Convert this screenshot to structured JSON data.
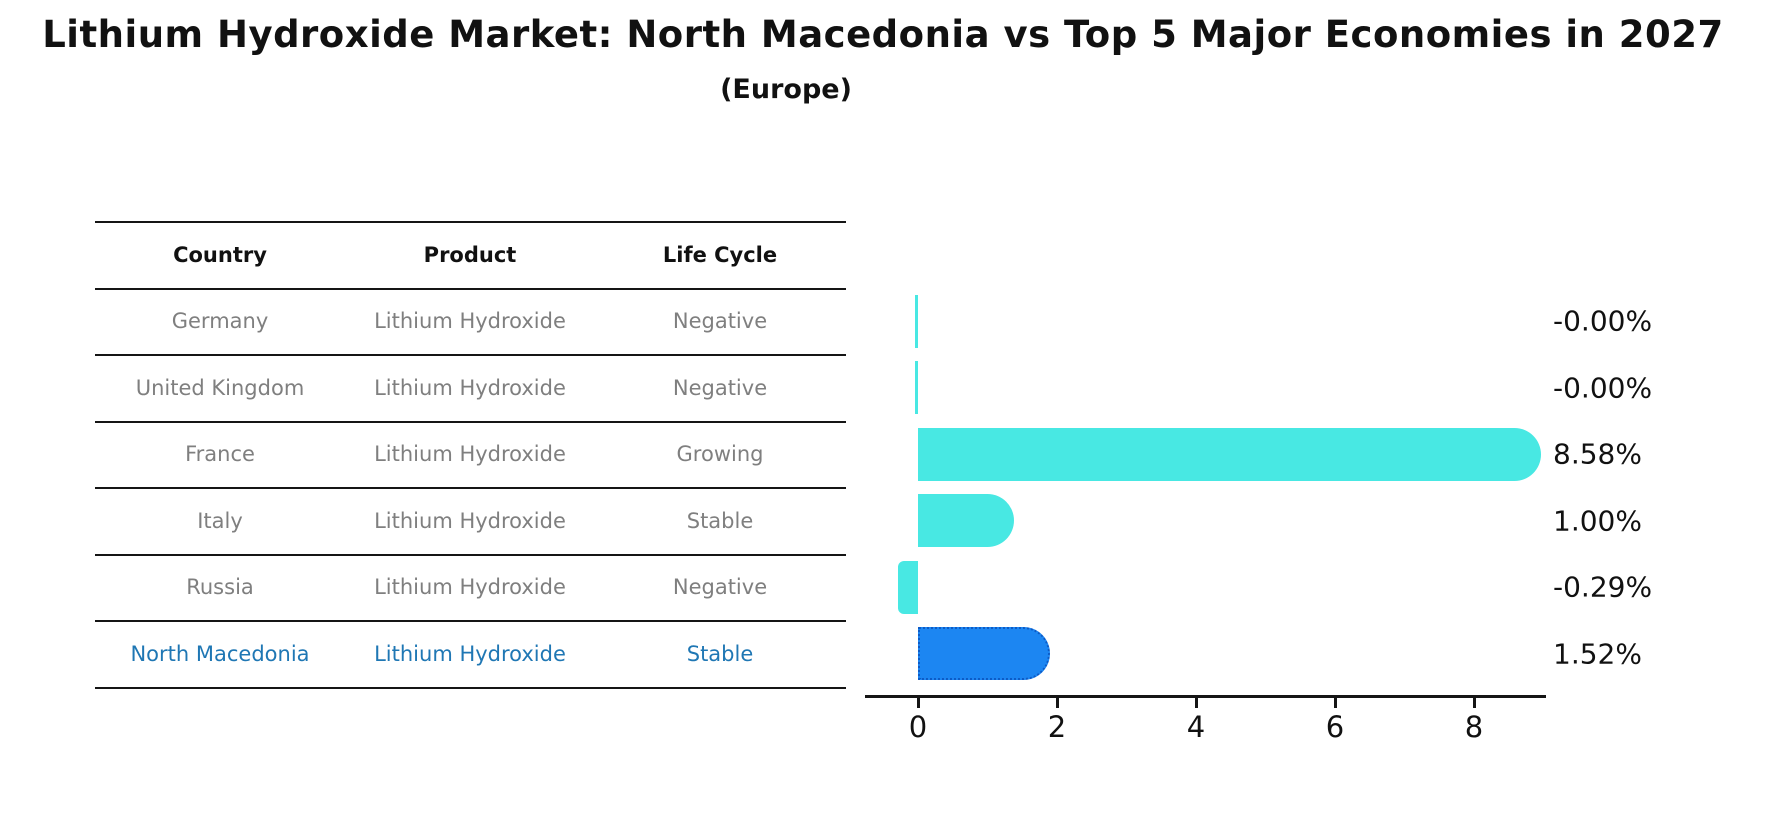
{
  "title": "Lithium Hydroxide Market: North Macedonia vs Top 5 Major Economies in 2027",
  "subtitle": "(Europe)",
  "table": {
    "headers": [
      "Country",
      "Product",
      "Life Cycle"
    ],
    "rows": [
      {
        "country": "Germany",
        "product": "Lithium Hydroxide",
        "life_cycle": "Negative",
        "highlight": false
      },
      {
        "country": "United Kingdom",
        "product": "Lithium Hydroxide",
        "life_cycle": "Negative",
        "highlight": false
      },
      {
        "country": "France",
        "product": "Lithium Hydroxide",
        "life_cycle": "Growing",
        "highlight": false
      },
      {
        "country": "Italy",
        "product": "Lithium Hydroxide",
        "life_cycle": "Stable",
        "highlight": false
      },
      {
        "country": "Russia",
        "product": "Lithium Hydroxide",
        "life_cycle": "Negative",
        "highlight": false
      },
      {
        "country": "North Macedonia",
        "product": "Lithium Hydroxide",
        "life_cycle": "Stable",
        "highlight": true
      }
    ]
  },
  "chart_data": {
    "type": "bar",
    "orientation": "horizontal",
    "title": "Lithium Hydroxide Market: North Macedonia vs Top 5 Major Economies in 2027 (Europe)",
    "categories": [
      "Germany",
      "United Kingdom",
      "France",
      "Italy",
      "Russia",
      "North Macedonia"
    ],
    "values": [
      -0.0,
      -0.0,
      8.58,
      1.0,
      -0.29,
      1.52
    ],
    "value_labels": [
      "-0.00%",
      "-0.00%",
      "8.58%",
      "1.00%",
      "-0.29%",
      "1.52%"
    ],
    "xticks": [
      0,
      2,
      4,
      6,
      8
    ],
    "xlim": [
      -0.76,
      9.05
    ],
    "grid": false,
    "legend_position": "none",
    "highlight_category": "North Macedonia",
    "bar_color": "#48e8e3",
    "highlight_bar_color": "#1c86f2",
    "highlight_edge_color": "#0d5bc6",
    "axis_color": "#151515",
    "label_color": "#111111"
  },
  "colors": {
    "highlight_text": "#1f77b4",
    "muted_text": "#7f7f7f",
    "heading_text": "#111111",
    "background": "#ffffff"
  }
}
